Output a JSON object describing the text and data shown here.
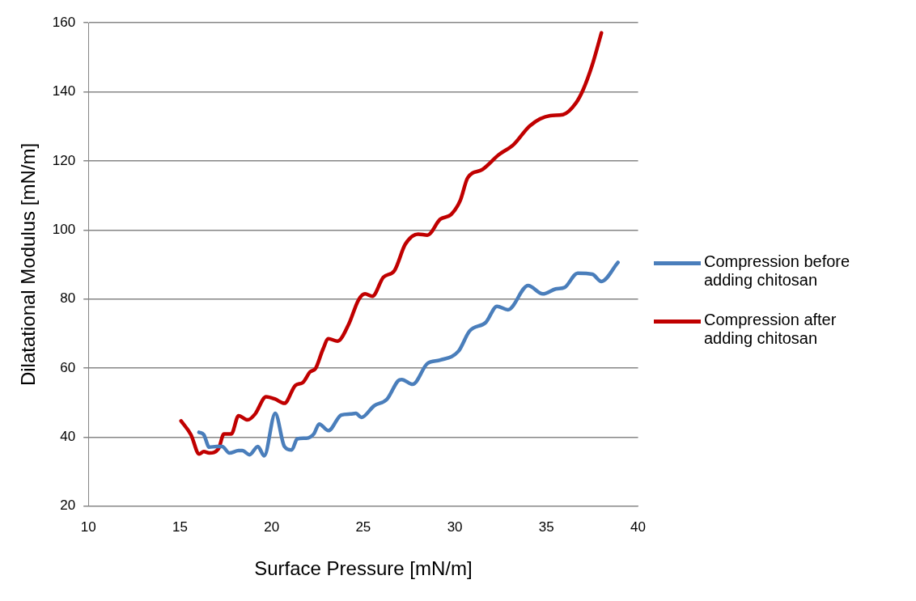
{
  "chart_data": {
    "type": "line",
    "xlabel": "Surface Pressure [mN/m]",
    "ylabel": "Dilatational Modulus [mN/m]",
    "xlim": [
      10,
      40
    ],
    "xticks": [
      10,
      15,
      20,
      25,
      30,
      35,
      40
    ],
    "ylim": [
      20,
      160
    ],
    "yticks": [
      20,
      40,
      60,
      80,
      100,
      120,
      140,
      160
    ],
    "grid": "y",
    "legend": "right",
    "marker": "none",
    "series": [
      {
        "name": "Compression before adding chitosan",
        "color": "#4a7ebb",
        "x": [
          16.04,
          16.3,
          16.6,
          17.0,
          17.3,
          17.7,
          18.2,
          18.4,
          18.8,
          19.25,
          19.6,
          20.2,
          20.7,
          21.1,
          21.4,
          21.9,
          22.3,
          22.6,
          23.1,
          23.8,
          24.3,
          24.6,
          24.9,
          25.6,
          26.3,
          26.9,
          27.1,
          27.7,
          28.5,
          29.2,
          30.2,
          30.8,
          31.7,
          32.3,
          32.9,
          34.0,
          34.8,
          35.5,
          36.0,
          36.7,
          37.5,
          38.0,
          38.9
        ],
        "values": [
          41.4,
          40.7,
          37.1,
          37.3,
          37.3,
          35.4,
          36.1,
          36.1,
          34.9,
          37.3,
          34.6,
          46.9,
          37.3,
          36.3,
          39.5,
          39.7,
          40.9,
          43.8,
          41.9,
          46.4,
          46.7,
          46.9,
          45.7,
          49.1,
          51,
          56.3,
          56.7,
          55.3,
          61.3,
          62.3,
          64.9,
          70.7,
          73.3,
          77.9,
          76.9,
          83.9,
          81.5,
          82.9,
          83.4,
          87.5,
          87.2,
          85.1,
          90.6
        ]
      },
      {
        "name": "Compression after adding chitosan",
        "color": "#c00000",
        "x": [
          15.06,
          15.6,
          16.05,
          16.3,
          16.6,
          17.1,
          17.4,
          17.8,
          18.2,
          18.7,
          19.1,
          19.7,
          20.2,
          20.7,
          21.3,
          21.7,
          22.1,
          22.4,
          22.8,
          23.1,
          23.6,
          24.2,
          24.75,
          25.1,
          25.5,
          26.1,
          26.7,
          27.3,
          28.0,
          28.5,
          29.2,
          29.8,
          30.3,
          30.7,
          31.5,
          32.4,
          33.2,
          34.1,
          35.2,
          35.9,
          36.6,
          37.0,
          37.5,
          38.0
        ],
        "values": [
          44.7,
          40.7,
          35.1,
          35.8,
          35.4,
          36.6,
          40.9,
          40.9,
          46.2,
          45,
          46.7,
          51.7,
          51,
          49.8,
          55,
          55.8,
          58.9,
          59.9,
          65.4,
          68.5,
          67.8,
          72.6,
          79.8,
          81.5,
          80.8,
          86.3,
          88.2,
          95.9,
          98.8,
          98.5,
          103.1,
          104.5,
          108.6,
          115.1,
          117.5,
          121.8,
          124.7,
          130.2,
          133.1,
          133.4,
          136.7,
          140.6,
          147.8,
          157.1
        ]
      }
    ]
  }
}
